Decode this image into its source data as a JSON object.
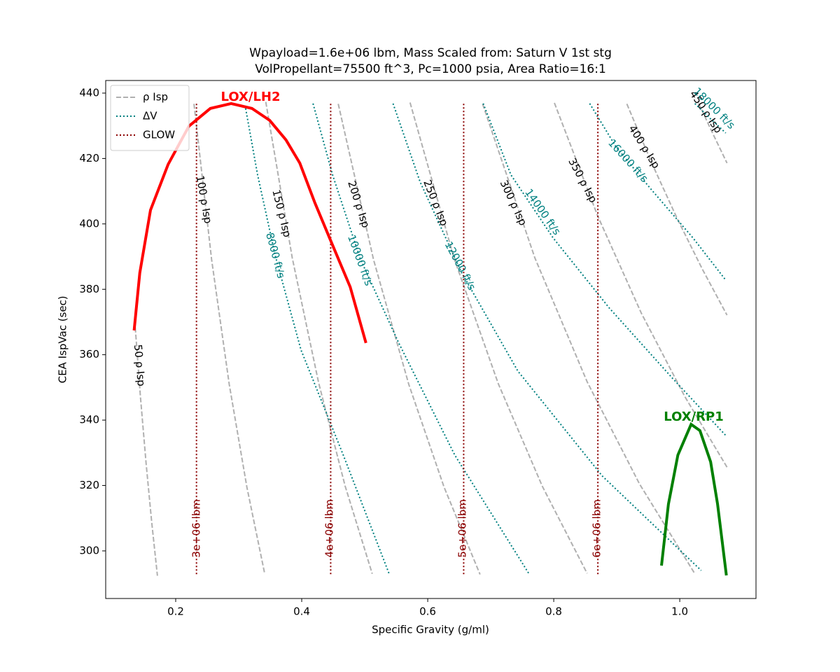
{
  "chart_data": {
    "type": "line",
    "title": "Wpayload=1.6e+06 lbm, Mass Scaled from: Saturn V 1st stg",
    "subtitle": "VolPropellant=75500 ft^3, Pc=1000 psia, Area Ratio=16:1",
    "x_label": "Specific Gravity (g/ml)",
    "y_label": "CEA IspVac (sec)",
    "xlim": [
      0.0889,
      1.121
    ],
    "ylim": [
      285.44,
      443.85
    ],
    "xticks": [
      0.2,
      0.4,
      0.6,
      0.8,
      {
        "value": 1.0,
        "label": "1.0"
      }
    ],
    "yticks": [
      300,
      320,
      340,
      360,
      380,
      400,
      420,
      440
    ],
    "grid": false,
    "legend": "upper left",
    "series": [
      {
        "name": "ρ Isp",
        "color": "#b0b0b0",
        "dash": "dashed",
        "lines": [
          {
            "label": "50 ρ Isp",
            "x": [
              0.135,
              0.144,
              0.153,
              0.162,
              0.171
            ],
            "values": [
              370.4,
              347.2,
              326.8,
              308.6,
              292.4
            ]
          },
          {
            "label": "100 ρ Isp",
            "x": [
              0.229,
              0.257,
              0.285,
              0.313,
              0.341
            ],
            "values": [
              436.7,
              389.1,
              350.9,
              319.5,
              293.3
            ]
          },
          {
            "label": "150 ρ Isp",
            "x": [
              0.343,
              0.385,
              0.427,
              0.469,
              0.512
            ],
            "values": [
              437.3,
              389.6,
              351.3,
              319.8,
              293.0
            ]
          },
          {
            "label": "200 ρ Isp",
            "x": [
              0.458,
              0.514,
              0.57,
              0.626,
              0.683
            ],
            "values": [
              436.7,
              389.1,
              350.9,
              319.5,
              292.8
            ]
          },
          {
            "label": "250 ρ Isp",
            "x": [
              0.572,
              0.642,
              0.712,
              0.782,
              0.853
            ],
            "values": [
              437.1,
              389.4,
              351.1,
              319.7,
              293.1
            ]
          },
          {
            "label": "300 ρ Isp",
            "x": [
              0.687,
              0.77,
              0.853,
              0.936,
              1.024
            ],
            "values": [
              436.7,
              389.6,
              351.7,
              320.5,
              293.0
            ]
          },
          {
            "label": "350 ρ Isp",
            "x": [
              0.801,
              0.87,
              0.939,
              1.008,
              1.075
            ],
            "values": [
              437.0,
              402.3,
              372.7,
              347.2,
              325.6
            ]
          },
          {
            "label": "400 ρ Isp",
            "x": [
              0.916,
              0.956,
              0.996,
              1.036,
              1.075
            ],
            "values": [
              436.7,
              418.4,
              401.6,
              386.1,
              372.1
            ]
          },
          {
            "label": "450 ρ Isp",
            "x": [
              1.03,
              1.052,
              1.075
            ],
            "values": [
              436.9,
              427.8,
              418.6
            ]
          }
        ]
      },
      {
        "name": "ΔV",
        "color": "#008080",
        "dash": "dotted",
        "lines": [
          {
            "label": "8000 ft/s",
            "x": [
              0.311,
              0.33,
              0.358,
              0.399,
              0.466,
              0.539
            ],
            "values": [
              435.3,
              415.0,
              390.3,
              361.4,
              329.3,
              292.9
            ]
          },
          {
            "label": "10000 ft/s",
            "x": [
              0.418,
              0.449,
              0.493,
              0.554,
              0.643,
              0.761
            ],
            "values": [
              436.8,
              415.0,
              389.3,
              363.6,
              329.3,
              292.9
            ]
          },
          {
            "label": "12000 ft/s",
            "x": [
              0.545,
              0.588,
              0.654,
              0.743,
              0.877,
              1.034
            ],
            "values": [
              436.8,
              412.8,
              385.0,
              355.0,
              322.9,
              294.0
            ]
          },
          {
            "label": "14000 ft/s",
            "x": [
              0.688,
              0.732,
              0.799,
              0.888,
              0.988,
              1.073
            ],
            "values": [
              436.8,
              415.0,
              395.7,
              374.3,
              352.9,
              335.3
            ]
          },
          {
            "label": "16000 ft/s",
            "x": [
              0.857,
              0.899,
              0.954,
              1.021,
              1.073
            ],
            "values": [
              436.8,
              423.5,
              410.7,
              395.7,
              382.8
            ]
          },
          {
            "label": "18000 ft/s",
            "x": [
              1.024,
              1.049,
              1.073
            ],
            "values": [
              436.8,
              432.1,
              427.8
            ]
          }
        ]
      },
      {
        "name": "GLOW",
        "color": "#8b0000",
        "dash": "dotted",
        "lines": [
          {
            "label": "3e+06 lbm",
            "x": [
              0.233,
              0.233
            ],
            "values": [
              292.9,
              436.8
            ]
          },
          {
            "label": "4e+06 lbm",
            "x": [
              0.446,
              0.446
            ],
            "values": [
              292.9,
              436.8
            ]
          },
          {
            "label": "5e+06 lbm",
            "x": [
              0.657,
              0.657
            ],
            "values": [
              292.9,
              436.8
            ]
          },
          {
            "label": "6e+06 lbm",
            "x": [
              0.87,
              0.87
            ],
            "values": [
              292.9,
              436.8
            ]
          }
        ]
      }
    ],
    "curves": [
      {
        "name": "LOX/LH2",
        "color": "#ff0000",
        "x": [
          0.134,
          0.143,
          0.16,
          0.188,
          0.221,
          0.255,
          0.288,
          0.321,
          0.349,
          0.375,
          0.397,
          0.421,
          0.449,
          0.477,
          0.502
        ],
        "values": [
          367.4,
          385.0,
          404.2,
          418.2,
          429.9,
          435.3,
          436.8,
          435.3,
          431.7,
          425.7,
          418.6,
          406.4,
          393.5,
          380.7,
          363.6
        ]
      },
      {
        "name": "LOX/RP1",
        "color": "#008000",
        "x": [
          0.971,
          0.982,
          0.997,
          1.018,
          1.032,
          1.049,
          1.06,
          1.074
        ],
        "values": [
          295.5,
          314.3,
          329.3,
          338.7,
          336.8,
          327.2,
          314.3,
          292.5
        ]
      }
    ]
  }
}
